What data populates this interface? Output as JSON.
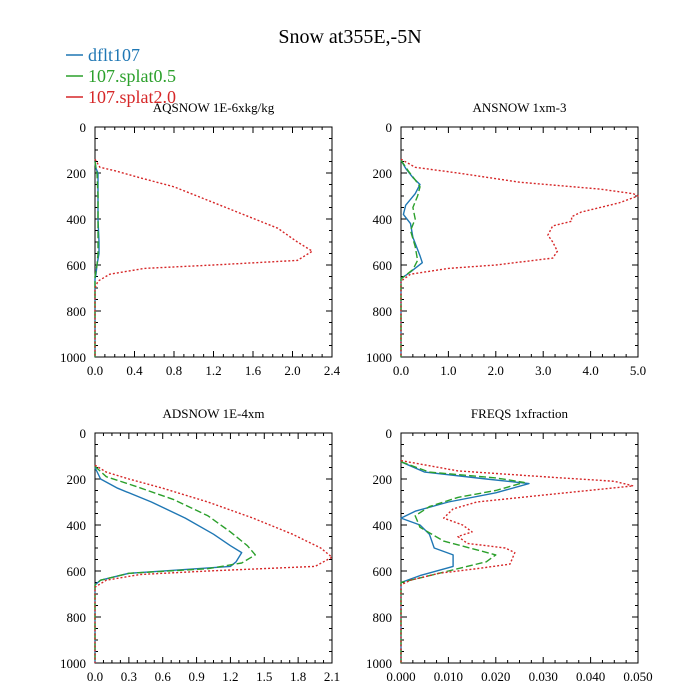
{
  "figure": {
    "title": "Snow at355E,-5N"
  },
  "colors": {
    "dflt107": "#1f77b4",
    "splat05": "#2ca02c",
    "splat20": "#d62728",
    "axis": "#000000"
  },
  "legend": {
    "placement": "top-left",
    "entries": [
      {
        "label": "dflt107",
        "color_key": "dflt107",
        "style": "solid"
      },
      {
        "label": "107.splat0.5",
        "color_key": "splat05",
        "style": "dashed"
      },
      {
        "label": "107.splat2.0",
        "color_key": "splat20",
        "style": "dotted"
      }
    ]
  },
  "chart_data": [
    {
      "type": "line",
      "title": "AQSNOW  1E-6xkg/kg",
      "xlim": [
        0,
        2.4
      ],
      "xticks": [
        "0.0",
        "0.4",
        "0.8",
        "1.2",
        "1.6",
        "2.0",
        "2.4"
      ],
      "ylim": [
        0,
        1000
      ],
      "y_inverted": true,
      "yticks": [
        "0",
        "200",
        "400",
        "600",
        "800",
        "1000"
      ],
      "series": [
        {
          "name": "dflt107",
          "style": "solid",
          "points": [
            [
              0,
              150
            ],
            [
              0.01,
              180
            ],
            [
              0.03,
              200
            ],
            [
              0.03,
              300
            ],
            [
              0.03,
              400
            ],
            [
              0.04,
              500
            ],
            [
              0.04,
              550
            ],
            [
              0.02,
              600
            ],
            [
              0.01,
              640
            ],
            [
              0,
              660
            ],
            [
              0,
              1000
            ]
          ]
        },
        {
          "name": "107.splat0.5",
          "style": "dashed",
          "points": [
            [
              0,
              150
            ],
            [
              0.01,
              180
            ],
            [
              0.02,
              200
            ],
            [
              0.03,
              300
            ],
            [
              0.03,
              400
            ],
            [
              0.03,
              500
            ],
            [
              0.03,
              550
            ],
            [
              0.02,
              600
            ],
            [
              0,
              650
            ],
            [
              0,
              1000
            ]
          ]
        },
        {
          "name": "107.splat2.0",
          "style": "dotted",
          "points": [
            [
              0,
              140
            ],
            [
              0.05,
              175
            ],
            [
              0.2,
              190
            ],
            [
              0.45,
              220
            ],
            [
              0.8,
              260
            ],
            [
              1.15,
              320
            ],
            [
              1.5,
              380
            ],
            [
              1.85,
              440
            ],
            [
              2.05,
              500
            ],
            [
              2.2,
              540
            ],
            [
              2.05,
              580
            ],
            [
              1.2,
              600
            ],
            [
              0.5,
              615
            ],
            [
              0.15,
              640
            ],
            [
              0.03,
              670
            ],
            [
              0,
              700
            ],
            [
              0,
              1000
            ]
          ]
        }
      ]
    },
    {
      "type": "line",
      "title": "ANSNOW  1xm-3",
      "xlim": [
        0,
        5.0
      ],
      "xticks": [
        "0.0",
        "1.0",
        "2.0",
        "3.0",
        "4.0",
        "5.0"
      ],
      "ylim": [
        0,
        1000
      ],
      "y_inverted": true,
      "yticks": [
        "0",
        "200",
        "400",
        "600",
        "800",
        "1000"
      ],
      "series": [
        {
          "name": "dflt107",
          "style": "solid",
          "points": [
            [
              0,
              145
            ],
            [
              0.1,
              180
            ],
            [
              0.25,
              220
            ],
            [
              0.4,
              250
            ],
            [
              0.3,
              290
            ],
            [
              0.1,
              340
            ],
            [
              0.05,
              380
            ],
            [
              0.2,
              420
            ],
            [
              0.25,
              480
            ],
            [
              0.4,
              560
            ],
            [
              0.45,
              590
            ],
            [
              0.2,
              630
            ],
            [
              0,
              660
            ],
            [
              0,
              1000
            ]
          ]
        },
        {
          "name": "107.splat0.5",
          "style": "dashed",
          "points": [
            [
              0,
              145
            ],
            [
              0.15,
              190
            ],
            [
              0.3,
              230
            ],
            [
              0.4,
              260
            ],
            [
              0.35,
              300
            ],
            [
              0.25,
              350
            ],
            [
              0.3,
              400
            ],
            [
              0.2,
              450
            ],
            [
              0.3,
              520
            ],
            [
              0.35,
              580
            ],
            [
              0.25,
              620
            ],
            [
              0,
              660
            ],
            [
              0,
              1000
            ]
          ]
        },
        {
          "name": "107.splat2.0",
          "style": "dotted",
          "points": [
            [
              0,
              140
            ],
            [
              0.3,
              175
            ],
            [
              1.2,
              200
            ],
            [
              2.5,
              240
            ],
            [
              4.2,
              270
            ],
            [
              4.9,
              290
            ],
            [
              5.0,
              300
            ],
            [
              4.6,
              330
            ],
            [
              3.8,
              370
            ],
            [
              3.6,
              390
            ],
            [
              3.6,
              410
            ],
            [
              3.2,
              430
            ],
            [
              3.1,
              470
            ],
            [
              3.2,
              500
            ],
            [
              3.3,
              540
            ],
            [
              3.2,
              570
            ],
            [
              2.0,
              600
            ],
            [
              1.0,
              615
            ],
            [
              0.2,
              640
            ],
            [
              0,
              670
            ],
            [
              0,
              1000
            ]
          ]
        }
      ]
    },
    {
      "type": "line",
      "title": "ADSNOW  1E-4xm",
      "xlim": [
        0,
        2.1
      ],
      "xticks": [
        "0.0",
        "0.3",
        "0.6",
        "0.9",
        "1.2",
        "1.5",
        "1.8",
        "2.1"
      ],
      "ylim": [
        0,
        1000
      ],
      "y_inverted": true,
      "yticks": [
        "0",
        "200",
        "400",
        "600",
        "800",
        "1000"
      ],
      "series": [
        {
          "name": "dflt107",
          "style": "solid",
          "points": [
            [
              0,
              150
            ],
            [
              0.05,
              200
            ],
            [
              0.2,
              240
            ],
            [
              0.5,
              300
            ],
            [
              0.8,
              370
            ],
            [
              1.05,
              440
            ],
            [
              1.2,
              490
            ],
            [
              1.3,
              520
            ],
            [
              1.25,
              560
            ],
            [
              1.2,
              580
            ],
            [
              0.3,
              610
            ],
            [
              0.05,
              640
            ],
            [
              0,
              660
            ],
            [
              0,
              1000
            ]
          ]
        },
        {
          "name": "107.splat0.5",
          "style": "dashed",
          "points": [
            [
              0,
              145
            ],
            [
              0.1,
              190
            ],
            [
              0.35,
              230
            ],
            [
              0.7,
              290
            ],
            [
              1.0,
              360
            ],
            [
              1.2,
              430
            ],
            [
              1.35,
              490
            ],
            [
              1.42,
              530
            ],
            [
              1.3,
              565
            ],
            [
              1.0,
              590
            ],
            [
              0.3,
              610
            ],
            [
              0.05,
              640
            ],
            [
              0,
              660
            ],
            [
              0,
              1000
            ]
          ]
        },
        {
          "name": "107.splat2.0",
          "style": "dotted",
          "points": [
            [
              0,
              140
            ],
            [
              0.1,
              170
            ],
            [
              0.3,
              200
            ],
            [
              0.6,
              240
            ],
            [
              1.0,
              300
            ],
            [
              1.4,
              370
            ],
            [
              1.75,
              440
            ],
            [
              2.0,
              500
            ],
            [
              2.1,
              540
            ],
            [
              1.95,
              580
            ],
            [
              1.0,
              600
            ],
            [
              0.4,
              615
            ],
            [
              0.1,
              640
            ],
            [
              0,
              670
            ],
            [
              0,
              1000
            ]
          ]
        }
      ]
    },
    {
      "type": "line",
      "title": "FREQS  1xfraction",
      "xlim": [
        0,
        0.05
      ],
      "xticks": [
        "0.000",
        "0.010",
        "0.020",
        "0.030",
        "0.040",
        "0.050"
      ],
      "ylim": [
        0,
        1000
      ],
      "y_inverted": true,
      "yticks": [
        "0",
        "200",
        "400",
        "600",
        "800",
        "1000"
      ],
      "series": [
        {
          "name": "dflt107",
          "style": "solid",
          "points": [
            [
              0,
              125
            ],
            [
              0.005,
              170
            ],
            [
              0.018,
              200
            ],
            [
              0.027,
              220
            ],
            [
              0.02,
              260
            ],
            [
              0.01,
              300
            ],
            [
              0.003,
              340
            ],
            [
              0.0,
              370
            ],
            [
              0.004,
              400
            ],
            [
              0.006,
              440
            ],
            [
              0.007,
              500
            ],
            [
              0.011,
              530
            ],
            [
              0.011,
              580
            ],
            [
              0.004,
              620
            ],
            [
              0,
              650
            ],
            [
              0,
              1000
            ]
          ]
        },
        {
          "name": "107.splat0.5",
          "style": "dashed",
          "points": [
            [
              0,
              125
            ],
            [
              0.006,
              170
            ],
            [
              0.02,
              195
            ],
            [
              0.026,
              215
            ],
            [
              0.02,
              250
            ],
            [
              0.012,
              280
            ],
            [
              0.006,
              320
            ],
            [
              0.003,
              360
            ],
            [
              0.004,
              410
            ],
            [
              0.009,
              470
            ],
            [
              0.02,
              530
            ],
            [
              0.018,
              560
            ],
            [
              0.01,
              600
            ],
            [
              0.004,
              630
            ],
            [
              0,
              650
            ],
            [
              0,
              1000
            ]
          ]
        },
        {
          "name": "107.splat2.0",
          "style": "dotted",
          "points": [
            [
              0,
              120
            ],
            [
              0.012,
              165
            ],
            [
              0.03,
              190
            ],
            [
              0.045,
              210
            ],
            [
              0.049,
              230
            ],
            [
              0.03,
              270
            ],
            [
              0.016,
              300
            ],
            [
              0.011,
              330
            ],
            [
              0.009,
              370
            ],
            [
              0.013,
              400
            ],
            [
              0.015,
              430
            ],
            [
              0.012,
              450
            ],
            [
              0.014,
              480
            ],
            [
              0.022,
              500
            ],
            [
              0.024,
              520
            ],
            [
              0.023,
              570
            ],
            [
              0.016,
              590
            ],
            [
              0.008,
              610
            ],
            [
              0.002,
              640
            ],
            [
              0,
              660
            ],
            [
              0,
              1000
            ]
          ]
        }
      ]
    }
  ]
}
